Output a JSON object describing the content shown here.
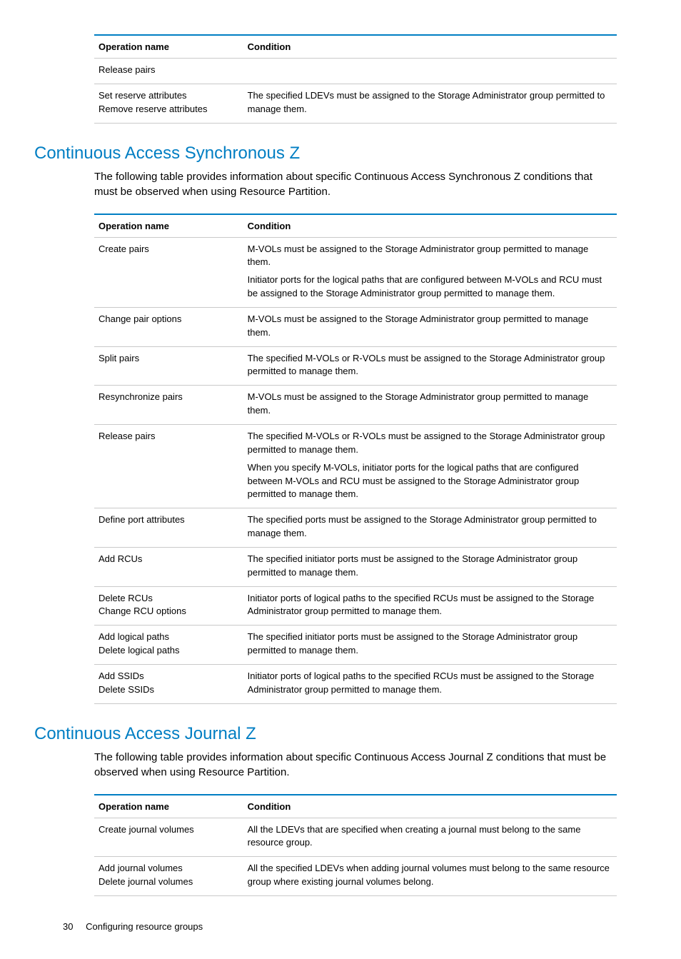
{
  "colors": {
    "accent": "#007ec3",
    "border": "#c9c9c9",
    "text": "#000000",
    "background": "#ffffff"
  },
  "fonts": {
    "heading_size_pt": 24,
    "body_size_pt": 15,
    "table_size_pt": 13
  },
  "table1": {
    "headers": {
      "op": "Operation name",
      "cond": "Condition"
    },
    "rows": [
      {
        "op": [
          "Release pairs"
        ],
        "cond": []
      },
      {
        "op": [
          "Set reserve attributes",
          "Remove reserve attributes"
        ],
        "cond": [
          "The specified LDEVs must be assigned to the Storage Administrator group permitted to manage them."
        ]
      }
    ]
  },
  "section2": {
    "title": "Continuous Access Synchronous Z",
    "intro": "The following table provides information about specific Continuous Access Synchronous Z conditions that must be observed when using Resource Partition.",
    "headers": {
      "op": "Operation name",
      "cond": "Condition"
    },
    "rows": [
      {
        "op": [
          "Create pairs"
        ],
        "cond": [
          "M-VOLs must be assigned to the Storage Administrator group permitted to manage them.",
          "Initiator ports for the logical paths that are configured between M-VOLs and RCU must be assigned to the Storage Administrator group permitted to manage them."
        ]
      },
      {
        "op": [
          "Change pair options"
        ],
        "cond": [
          "M-VOLs must be assigned to the Storage Administrator group permitted to manage them."
        ]
      },
      {
        "op": [
          "Split pairs"
        ],
        "cond": [
          "The specified M-VOLs or R-VOLs must be assigned to the Storage Administrator group permitted to manage them."
        ]
      },
      {
        "op": [
          "Resynchronize pairs"
        ],
        "cond": [
          "M-VOLs must be assigned to the Storage Administrator group permitted to manage them."
        ]
      },
      {
        "op": [
          "Release pairs"
        ],
        "cond": [
          "The specified M-VOLs or R-VOLs must be assigned to the Storage Administrator group permitted to manage them.",
          "When you specify M-VOLs, initiator ports for the logical paths that are configured between M-VOLs and RCU must be assigned to the Storage Administrator group permitted to manage them."
        ]
      },
      {
        "op": [
          "Define port attributes"
        ],
        "cond": [
          "The specified ports must be assigned to the Storage Administrator group permitted to manage them."
        ]
      },
      {
        "op": [
          "Add RCUs"
        ],
        "cond": [
          "The specified initiator ports must be assigned to the Storage Administrator group permitted to manage them."
        ]
      },
      {
        "op": [
          "Delete RCUs",
          "Change RCU options"
        ],
        "cond": [
          "Initiator ports of logical paths to the specified RCUs must be assigned to the Storage Administrator group permitted to manage them."
        ]
      },
      {
        "op": [
          "Add logical paths",
          "Delete logical paths"
        ],
        "cond": [
          "The specified initiator ports must be assigned to the Storage Administrator group permitted to manage them."
        ]
      },
      {
        "op": [
          "Add SSIDs",
          "Delete SSIDs"
        ],
        "cond": [
          "Initiator ports of logical paths to the specified RCUs must be assigned to the Storage Administrator group permitted to manage them."
        ]
      }
    ]
  },
  "section3": {
    "title": "Continuous Access Journal Z",
    "intro": "The following table provides information about specific Continuous Access Journal Z conditions that must be observed when using Resource Partition.",
    "headers": {
      "op": "Operation name",
      "cond": "Condition"
    },
    "rows": [
      {
        "op": [
          "Create journal volumes"
        ],
        "cond": [
          "All the LDEVs that are specified when creating a journal must belong to the same resource group."
        ]
      },
      {
        "op": [
          "Add journal volumes",
          "Delete journal volumes"
        ],
        "cond": [
          "All the specified LDEVs when adding journal volumes must belong to the same resource group where existing journal volumes belong."
        ]
      }
    ]
  },
  "footer": {
    "page_number": "30",
    "chapter": "Configuring resource groups"
  }
}
